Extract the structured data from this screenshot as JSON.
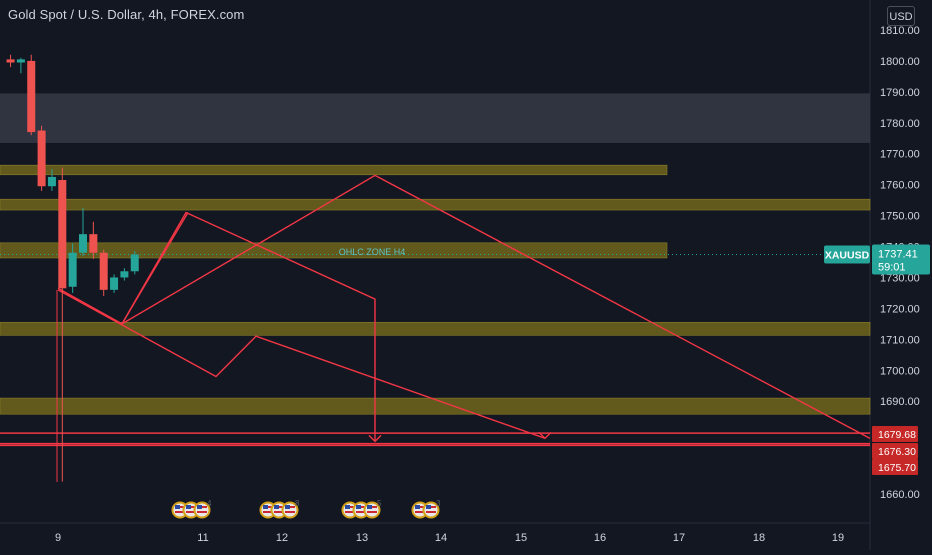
{
  "header": {
    "title": "Gold Spot / U.S. Dollar, 4h, FOREX.com",
    "currency": "USD"
  },
  "colors": {
    "background": "#131722",
    "up": "#26a69a",
    "down": "#ef5350",
    "zone_fill": "#7d6f1a",
    "zone_border": "#b3a32d",
    "gray_zone": "#363a45",
    "drawing": "#f23645",
    "grid_text": "#d1d4dc",
    "price_tag": "#26a69a"
  },
  "chart_data": {
    "type": "candlestick",
    "title": "Gold Spot / U.S. Dollar, 4h, FOREX.com",
    "symbol": "XAUUSD",
    "ylim": [
      1651,
      1816
    ],
    "y_ticks": [
      "1810.00",
      "1800.00",
      "1790.00",
      "1780.00",
      "1770.00",
      "1760.00",
      "1750.00",
      "1740.00",
      "1730.00",
      "1720.00",
      "1710.00",
      "1700.00",
      "1690.00",
      "1660.00"
    ],
    "x_ticks": [
      "9",
      "11",
      "12",
      "13",
      "14",
      "15",
      "16",
      "17",
      "18",
      "19"
    ],
    "candles": [
      {
        "i": -7,
        "o": 1800.5,
        "h": 1802,
        "c": 1799.5,
        "l": 1798
      },
      {
        "i": -6,
        "o": 1799.5,
        "h": 1801,
        "c": 1800.5,
        "l": 1796
      },
      {
        "i": -5,
        "o": 1800,
        "h": 1802,
        "c": 1777,
        "l": 1776
      },
      {
        "i": -4,
        "o": 1777.5,
        "h": 1779,
        "c": 1759.5,
        "l": 1758
      },
      {
        "i": -3,
        "o": 1759.5,
        "h": 1765,
        "c": 1762.5,
        "l": 1758
      },
      {
        "i": -2,
        "o": 1761.5,
        "h": 1765.5,
        "c": 1726.5,
        "l": 1664
      },
      {
        "i": -1,
        "o": 1727,
        "h": 1741,
        "c": 1738,
        "l": 1725
      },
      {
        "i": 0,
        "o": 1738,
        "h": 1752.5,
        "c": 1744,
        "l": 1737
      },
      {
        "i": 1,
        "o": 1744,
        "h": 1748,
        "c": 1738,
        "l": 1736
      },
      {
        "i": 2,
        "o": 1738,
        "h": 1739,
        "c": 1726,
        "l": 1724
      },
      {
        "i": 3,
        "o": 1726,
        "h": 1731,
        "c": 1730,
        "l": 1725
      },
      {
        "i": 4,
        "o": 1730,
        "h": 1733,
        "c": 1732,
        "l": 1729
      },
      {
        "i": 5,
        "o": 1732,
        "h": 1738.5,
        "c": 1737.4,
        "l": 1731
      }
    ],
    "zones": [
      {
        "y1": 1773.5,
        "y2": 1789.5,
        "kind": "gray"
      },
      {
        "y1": 1763.2,
        "y2": 1766.3,
        "kind": "gold"
      },
      {
        "y1": 1751.8,
        "y2": 1755.3,
        "kind": "gold"
      },
      {
        "y1": 1736.3,
        "y2": 1741.2,
        "kind": "gold"
      },
      {
        "y1": 1711.3,
        "y2": 1715.5,
        "kind": "gold"
      },
      {
        "y1": 1685.8,
        "y2": 1691,
        "kind": "gold"
      }
    ],
    "h_lines": [
      1679.68,
      1676.3,
      1675.7
    ],
    "zone_label": "OHLC ZONE H4",
    "current_price": {
      "label": "XAUUSD",
      "value": "1737.41",
      "countdown": "59:01"
    },
    "price_tags": [
      "1679.68",
      "1676.30",
      "1675.70"
    ],
    "event_groups": [
      {
        "badge": "4"
      },
      {
        "badge": "8"
      },
      {
        "badge": "5"
      },
      {
        "badge": "3"
      }
    ]
  }
}
